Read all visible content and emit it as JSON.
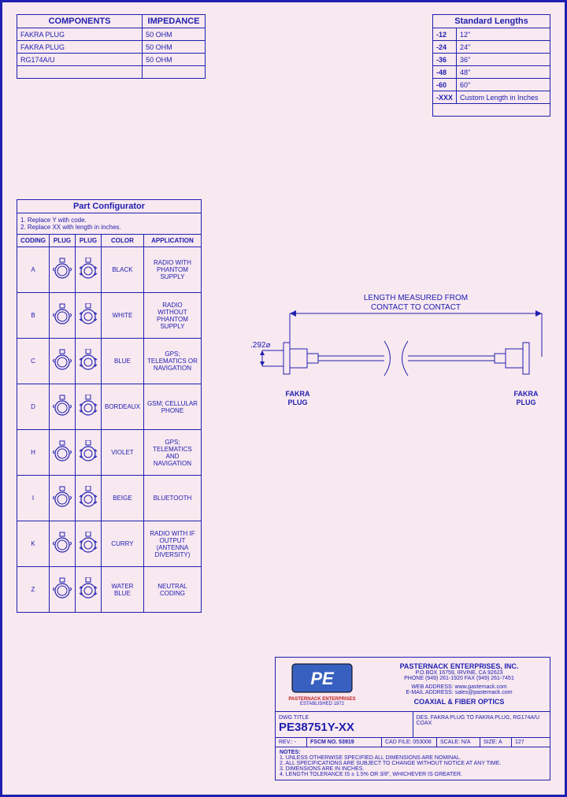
{
  "components": {
    "header1": "COMPONENTS",
    "header2": "IMPEDANCE",
    "rows": [
      {
        "name": "FAKRA PLUG",
        "imp": "50 OHM"
      },
      {
        "name": "FAKRA PLUG",
        "imp": "50 OHM"
      },
      {
        "name": "RG174A/U",
        "imp": "50 OHM"
      }
    ]
  },
  "lengths": {
    "header": "Standard Lengths",
    "rows": [
      {
        "code": "-12",
        "val": "12\""
      },
      {
        "code": "-24",
        "val": "24\""
      },
      {
        "code": "-36",
        "val": "36\""
      },
      {
        "code": "-48",
        "val": "48\""
      },
      {
        "code": "-60",
        "val": "60\""
      },
      {
        "code": "-XXX",
        "val": "Custom Length in Inches"
      }
    ]
  },
  "config": {
    "title": "Part Configurator",
    "note1": "1. Replace Y with code.",
    "note2": "2. Replace XX with length in inches.",
    "h_code": "CODING",
    "h_plug1": "PLUG",
    "h_plug2": "PLUG",
    "h_color": "COLOR",
    "h_app": "APPLICATION",
    "rows": [
      {
        "code": "A",
        "color": "BLACK",
        "app": "RADIO WITH PHANTOM SUPPLY",
        "p2style": "top"
      },
      {
        "code": "B",
        "color": "WHITE",
        "app": "RADIO WITHOUT PHANTOM SUPPLY",
        "p2style": "top"
      },
      {
        "code": "C",
        "color": "BLUE",
        "app": "GPS; TELEMATICS OR NAVIGATION",
        "p2style": "top"
      },
      {
        "code": "D",
        "color": "BORDEAUX",
        "app": "GSM; CELLULAR PHONE",
        "p2style": "top"
      },
      {
        "code": "H",
        "color": "VIOLET",
        "app": "GPS; TELEMATICS AND NAVIGATION",
        "p2style": "top"
      },
      {
        "code": "I",
        "color": "BEIGE",
        "app": "BLUETOOTH",
        "p2style": "top"
      },
      {
        "code": "K",
        "color": "CURRY",
        "app": "RADIO WITH IF OUTPUT (ANTENNA DIVERSITY)",
        "p2style": "top"
      },
      {
        "code": "Z",
        "color": "WATER BLUE",
        "app": "NEUTRAL CODING",
        "p2style": "top"
      }
    ]
  },
  "diagram": {
    "top_label": "LENGTH MEASURED FROM CONTACT TO CONTACT",
    "dia": ".292⌀",
    "left_label": "FAKRA PLUG",
    "right_label": "FAKRA PLUG"
  },
  "titleblock": {
    "company": "PASTERNACK ENTERPRISES, INC.",
    "addr": "P.O.BOX 16759, IRVINE, CA 92623",
    "phone": "PHONE (949) 261-1920 FAX (949) 261-7451",
    "web": "WEB ADDRESS: www.pasternack.com",
    "email": "E-MAIL ADDRESS: sales@pasternack.com",
    "product": "COAXIAL & FIBER OPTICS",
    "logo_sub": "PASTERNACK ENTERPRISES",
    "est": "ESTABLISHED 1972",
    "dwg_title_lbl": "DWG TITLE",
    "part_number": "PE38751Y-XX",
    "des_lbl": "DES.",
    "des": "FAKRA PLUG TO FAKRA PLUG, RG174A/U COAX",
    "rev_lbl": "REV.: -",
    "fscm": "FSCM NO. 53919",
    "cad_lbl": "CAD FILE:",
    "cad": "053008",
    "scale_lbl": "SCALE: N/A",
    "size_lbl": "SIZE: A",
    "page": "127",
    "notes_title": "NOTES:",
    "n1": "1. UNLESS OTHERWISE SPECIFIED ALL DIMENSIONS ARE NOMINAL.",
    "n2": "2. ALL SPECIFICATIONS ARE SUBJECT TO CHANGE WITHOUT NOTICE AT ANY TIME.",
    "n3": "3. DIMENSIONS ARE IN INCHES.",
    "n4": "4. LENGTH TOLERANCE IS ± 1.5% OR 3/8\", WHICHEVER IS GREATER."
  },
  "colors": {
    "border": "#2020b0",
    "bg": "#f8e8f0"
  }
}
